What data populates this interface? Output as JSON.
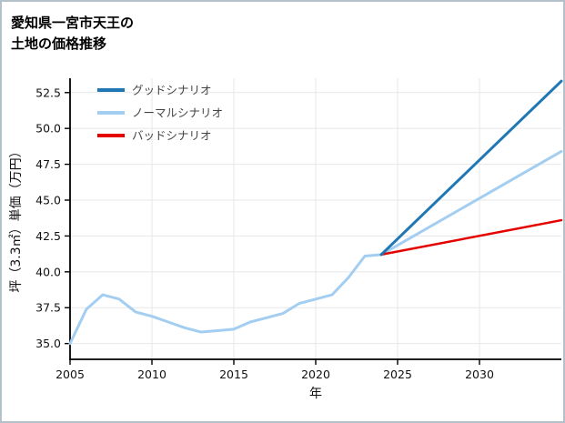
{
  "title": {
    "line1": "愛知県一宮市天王の",
    "line2": "土地の価格推移"
  },
  "chart_data": {
    "type": "line",
    "title": "愛知県一宮市天王の土地の価格推移",
    "xlabel": "年",
    "ylabel": "坪（3.3㎡）単価（万円）",
    "xlim": [
      2005,
      2035
    ],
    "ylim": [
      33.9,
      53.5
    ],
    "xticks": [
      2005,
      2010,
      2015,
      2020,
      2025,
      2030
    ],
    "yticks": [
      35.0,
      37.5,
      40.0,
      42.5,
      45.0,
      47.5,
      50.0,
      52.5
    ],
    "grid": true,
    "legend_position": "top-left",
    "legend": [
      {
        "label": "グッドシナリオ",
        "color": "#1f77b4"
      },
      {
        "label": "ノーマルシナリオ",
        "color": "#a3cef1"
      },
      {
        "label": "バッドシナリオ",
        "color": "#e50000"
      }
    ],
    "series": [
      {
        "name": "normal-scenario",
        "label": "ノーマルシナリオ",
        "color": "#a3cef1",
        "width": 3,
        "x": [
          2005,
          2006,
          2007,
          2008,
          2009,
          2010,
          2011,
          2012,
          2013,
          2014,
          2015,
          2016,
          2017,
          2018,
          2019,
          2020,
          2021,
          2022,
          2023,
          2024,
          2035
        ],
        "y": [
          35.0,
          37.4,
          38.4,
          38.1,
          37.2,
          36.9,
          36.5,
          36.1,
          35.8,
          35.9,
          36.0,
          36.5,
          36.8,
          37.1,
          37.8,
          38.1,
          38.4,
          39.6,
          41.1,
          41.2,
          48.4
        ]
      },
      {
        "name": "bad-scenario",
        "label": "バッドシナリオ",
        "color": "#e50000",
        "width": 2.5,
        "x": [
          2024,
          2035
        ],
        "y": [
          41.2,
          43.6
        ]
      },
      {
        "name": "good-scenario",
        "label": "グッドシナリオ",
        "color": "#1f77b4",
        "width": 3,
        "x": [
          2024,
          2035
        ],
        "y": [
          41.2,
          53.3
        ]
      }
    ]
  }
}
